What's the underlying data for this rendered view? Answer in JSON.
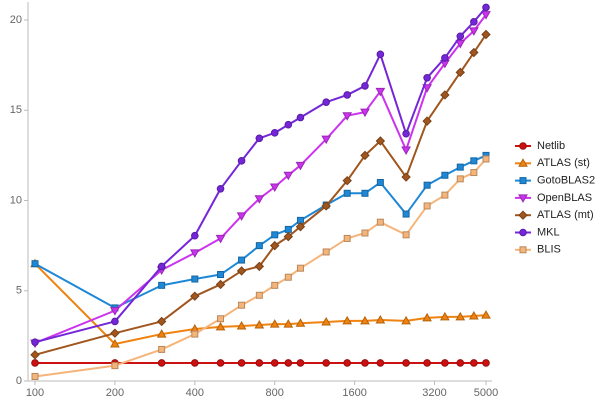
{
  "chart_data": {
    "type": "line",
    "x": [
      100,
      200,
      300,
      400,
      500,
      600,
      700,
      800,
      900,
      1000,
      1250,
      1500,
      1750,
      2000,
      2500,
      3000,
      3500,
      4000,
      4500,
      5000
    ],
    "xscale": "log",
    "xlim": [
      100,
      5000
    ],
    "xticks": [
      100,
      200,
      400,
      800,
      1600,
      3200,
      5000
    ],
    "ylim": [
      0,
      21
    ],
    "yticks": [
      0,
      5,
      10,
      15,
      20
    ],
    "grid": false,
    "legend": "right",
    "series": [
      {
        "name": "Netlib",
        "color": "#cc1111",
        "marker": "circle",
        "values": [
          1,
          1,
          1,
          1,
          1,
          1,
          1,
          1,
          1,
          1,
          1,
          1,
          1,
          1,
          1,
          1,
          1,
          1,
          1,
          1
        ]
      },
      {
        "name": "ATLAS (st)",
        "color": "#f0820f",
        "marker": "triangle-up",
        "values": [
          6.5,
          2.05,
          2.6,
          2.88,
          3.0,
          3.05,
          3.1,
          3.15,
          3.15,
          3.2,
          3.27,
          3.33,
          3.33,
          3.38,
          3.33,
          3.5,
          3.55,
          3.55,
          3.6,
          3.65
        ]
      },
      {
        "name": "GotoBLAS2",
        "color": "#1e88d6",
        "marker": "square",
        "values": [
          6.5,
          4.05,
          5.3,
          5.65,
          5.9,
          6.7,
          7.5,
          8.1,
          8.4,
          8.9,
          9.75,
          10.4,
          10.4,
          11.0,
          9.25,
          10.85,
          11.4,
          11.85,
          12.2,
          12.5
        ]
      },
      {
        "name": "OpenBLAS",
        "color": "#cc33ee",
        "marker": "triangle-down",
        "values": [
          2.1,
          3.9,
          6.15,
          7.1,
          7.9,
          9.15,
          10.1,
          10.75,
          11.4,
          11.95,
          13.4,
          14.7,
          14.9,
          16.05,
          12.8,
          16.25,
          17.6,
          18.7,
          19.4,
          20.3
        ]
      },
      {
        "name": "ATLAS (mt)",
        "color": "#a0561e",
        "marker": "diamond",
        "values": [
          1.45,
          2.65,
          3.3,
          4.7,
          5.35,
          6.1,
          6.35,
          7.5,
          8.0,
          8.55,
          9.7,
          11.1,
          12.5,
          13.3,
          11.3,
          14.4,
          15.85,
          17.1,
          18.2,
          19.2
        ]
      },
      {
        "name": "MKL",
        "color": "#7426d8",
        "marker": "circle",
        "values": [
          2.15,
          3.3,
          6.35,
          8.05,
          10.65,
          12.2,
          13.45,
          13.75,
          14.2,
          14.6,
          15.45,
          15.85,
          16.35,
          18.1,
          13.7,
          16.8,
          17.9,
          19.1,
          19.9,
          20.7
        ]
      },
      {
        "name": "BLIS",
        "color": "#f5b57a",
        "marker": "square",
        "values": [
          0.25,
          0.85,
          1.75,
          2.6,
          3.45,
          4.2,
          4.75,
          5.3,
          5.75,
          6.25,
          7.15,
          7.9,
          8.2,
          8.8,
          8.1,
          9.7,
          10.3,
          11.2,
          11.55,
          12.3
        ]
      }
    ]
  }
}
